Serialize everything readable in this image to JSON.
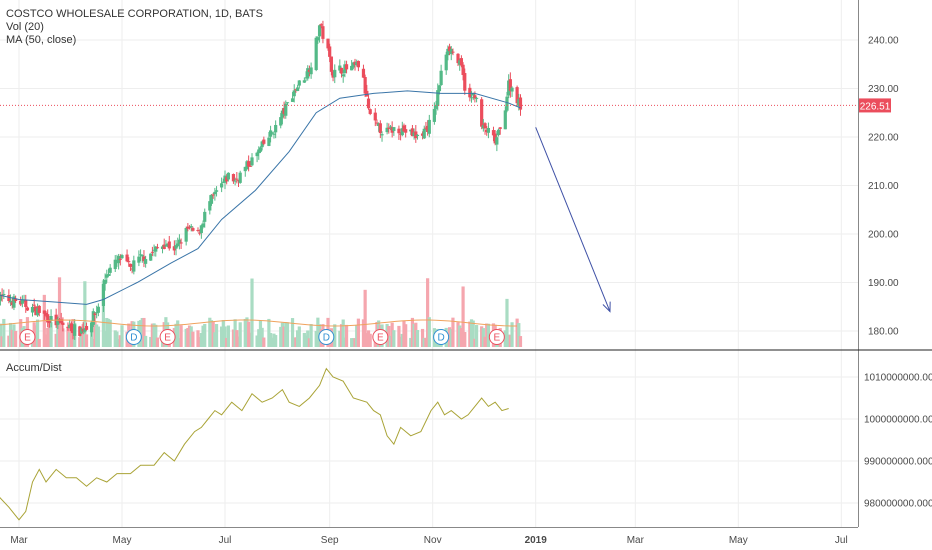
{
  "chart_data": {
    "type": "candlestick",
    "title": "COSTCO WHOLESALE CORPORATION, 1D, BATS",
    "indicators": [
      "Vol (20)",
      "MA (50, close)"
    ],
    "sub_indicator": "Accum/Dist",
    "last_price_label": "226.51",
    "last_price": 226.51,
    "price_axis": {
      "range": [
        175,
        250
      ],
      "ticks": [
        "240.00",
        "230.00",
        "220.00",
        "210.00",
        "200.00",
        "190.00",
        "180.00"
      ],
      "tick_values": [
        240,
        230,
        220,
        210,
        200,
        190,
        180
      ]
    },
    "ad_axis": {
      "range": [
        975000000,
        1013000000
      ],
      "ticks": [
        "1010000000.0000",
        "1000000000.0000",
        "990000000.0000",
        "980000000.0000"
      ],
      "tick_values": [
        1010000000,
        1000000000,
        990000000,
        980000000
      ]
    },
    "time_axis": {
      "labels": [
        "Mar",
        "May",
        "Jul",
        "Sep",
        "Nov",
        "2019",
        "Mar",
        "May",
        "Jul"
      ],
      "label_days": [
        0,
        61,
        122,
        184,
        245,
        306,
        365,
        426,
        487
      ]
    },
    "grid": true,
    "close_path": [
      [
        -13,
        187
      ],
      [
        0,
        186
      ],
      [
        12,
        184
      ],
      [
        20,
        182
      ],
      [
        28,
        181
      ],
      [
        36,
        180
      ],
      [
        40,
        181
      ],
      [
        46,
        184
      ],
      [
        52,
        192
      ],
      [
        60,
        195
      ],
      [
        66,
        193
      ],
      [
        72,
        195
      ],
      [
        78,
        196
      ],
      [
        86,
        198
      ],
      [
        93,
        197
      ],
      [
        100,
        201
      ],
      [
        106,
        200
      ],
      [
        112,
        206
      ],
      [
        118,
        209
      ],
      [
        124,
        212
      ],
      [
        128,
        211
      ],
      [
        135,
        214
      ],
      [
        140,
        216
      ],
      [
        146,
        219
      ],
      [
        152,
        222
      ],
      [
        158,
        226
      ],
      [
        162,
        229
      ],
      [
        166,
        231
      ],
      [
        170,
        233
      ],
      [
        174,
        236
      ],
      [
        178,
        243
      ],
      [
        182,
        239
      ],
      [
        186,
        233
      ],
      [
        190,
        234
      ],
      [
        196,
        234
      ],
      [
        202,
        235
      ],
      [
        208,
        224
      ],
      [
        212,
        222
      ],
      [
        218,
        221
      ],
      [
        224,
        222
      ],
      [
        230,
        221
      ],
      [
        236,
        220
      ],
      [
        242,
        222
      ],
      [
        246,
        225
      ],
      [
        250,
        233
      ],
      [
        254,
        239
      ],
      [
        258,
        237
      ],
      [
        262,
        234
      ],
      [
        266,
        227
      ],
      [
        270,
        229
      ],
      [
        274,
        222
      ],
      [
        278,
        221
      ],
      [
        282,
        219
      ],
      [
        286,
        222
      ],
      [
        290,
        231
      ],
      [
        294,
        229
      ],
      [
        297,
        226
      ]
    ],
    "ma_path": [
      [
        -13,
        187.5
      ],
      [
        0,
        186.5
      ],
      [
        20,
        186
      ],
      [
        40,
        185.5
      ],
      [
        50,
        186.5
      ],
      [
        70,
        190
      ],
      [
        90,
        194
      ],
      [
        106,
        197
      ],
      [
        120,
        203
      ],
      [
        140,
        209
      ],
      [
        160,
        217
      ],
      [
        176,
        225
      ],
      [
        190,
        228
      ],
      [
        210,
        229
      ],
      [
        230,
        229.5
      ],
      [
        250,
        229
      ],
      [
        270,
        229
      ],
      [
        290,
        227
      ],
      [
        297,
        226
      ]
    ],
    "volume_markers": [
      {
        "label": "E",
        "day": 5
      },
      {
        "label": "D",
        "day": 68
      },
      {
        "label": "E",
        "day": 88
      },
      {
        "label": "D",
        "day": 182
      },
      {
        "label": "E",
        "day": 214
      },
      {
        "label": "D",
        "day": 250
      },
      {
        "label": "E",
        "day": 283
      }
    ],
    "ad_path": [
      [
        -13,
        982
      ],
      [
        -6,
        979
      ],
      [
        0,
        976
      ],
      [
        4,
        978
      ],
      [
        8,
        985
      ],
      [
        12,
        988
      ],
      [
        16,
        985
      ],
      [
        22,
        988
      ],
      [
        28,
        986
      ],
      [
        34,
        986
      ],
      [
        40,
        984
      ],
      [
        46,
        986
      ],
      [
        52,
        985
      ],
      [
        58,
        987
      ],
      [
        66,
        987
      ],
      [
        72,
        989
      ],
      [
        80,
        989
      ],
      [
        86,
        992
      ],
      [
        92,
        990
      ],
      [
        98,
        994
      ],
      [
        104,
        997
      ],
      [
        108,
        998
      ],
      [
        112,
        1000
      ],
      [
        116,
        1002
      ],
      [
        120,
        1001
      ],
      [
        126,
        1004
      ],
      [
        132,
        1002
      ],
      [
        138,
        1006
      ],
      [
        144,
        1004
      ],
      [
        150,
        1005
      ],
      [
        156,
        1007
      ],
      [
        160,
        1004
      ],
      [
        166,
        1003
      ],
      [
        172,
        1005
      ],
      [
        178,
        1008
      ],
      [
        182,
        1012
      ],
      [
        186,
        1010
      ],
      [
        192,
        1009
      ],
      [
        198,
        1005
      ],
      [
        206,
        1004
      ],
      [
        210,
        1002
      ],
      [
        214,
        1001
      ],
      [
        218,
        996
      ],
      [
        222,
        994
      ],
      [
        226,
        998
      ],
      [
        232,
        996
      ],
      [
        238,
        997
      ],
      [
        244,
        1002
      ],
      [
        248,
        1004
      ],
      [
        252,
        1001
      ],
      [
        256,
        1002
      ],
      [
        262,
        1000
      ],
      [
        266,
        1001
      ],
      [
        270,
        1003
      ],
      [
        274,
        1005
      ],
      [
        278,
        1003
      ],
      [
        282,
        1004
      ],
      [
        286,
        1002
      ],
      [
        290,
        1002.5
      ]
    ],
    "annotation_arrow": {
      "from": [
        306,
        222
      ],
      "to": [
        350,
        184
      ]
    }
  }
}
